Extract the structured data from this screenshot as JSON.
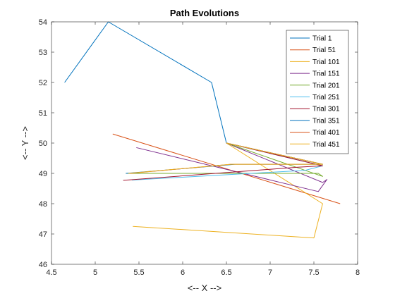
{
  "chart_data": {
    "type": "line",
    "title": "Path Evolutions",
    "xlabel": "<-- X -->",
    "ylabel": "<-- Y -->",
    "xlim": [
      4.5,
      8
    ],
    "ylim": [
      46,
      54
    ],
    "xticks": [
      4.5,
      5,
      5.5,
      6,
      6.5,
      7,
      7.5,
      8
    ],
    "yticks": [
      46,
      47,
      48,
      49,
      50,
      51,
      52,
      53,
      54
    ],
    "xtick_labels": [
      "4.5",
      "5",
      "5.5",
      "6",
      "6.5",
      "7",
      "7.5",
      "8"
    ],
    "ytick_labels": [
      "46",
      "47",
      "48",
      "49",
      "50",
      "51",
      "52",
      "53",
      "54"
    ],
    "grid": false,
    "legend_position": "top-right",
    "series": [
      {
        "name": "Trial 1",
        "color": "#0072BD",
        "x": [
          4.65,
          5.15,
          6.33,
          6.5,
          7.6
        ],
        "y": [
          52.0,
          54.0,
          52.0,
          50.0,
          49.3
        ]
      },
      {
        "name": "Trial 51",
        "color": "#D95319",
        "x": [
          5.2,
          7.8
        ],
        "y": [
          50.3,
          48.0
        ]
      },
      {
        "name": "Trial 101",
        "color": "#EDB120",
        "x": [
          5.43,
          7.5,
          7.6,
          6.5,
          7.6
        ],
        "y": [
          47.25,
          46.87,
          48.0,
          50.0,
          49.3
        ]
      },
      {
        "name": "Trial 151",
        "color": "#7E2F8E",
        "x": [
          5.47,
          7.55,
          7.65,
          7.6,
          6.5,
          7.6
        ],
        "y": [
          49.85,
          48.4,
          48.8,
          48.7,
          50.0,
          49.3
        ]
      },
      {
        "name": "Trial 201",
        "color": "#77AC30",
        "x": [
          5.35,
          7.55,
          7.6,
          6.5,
          7.6
        ],
        "y": [
          49.0,
          49.0,
          48.9,
          50.0,
          49.3
        ]
      },
      {
        "name": "Trial 251",
        "color": "#4DBEEE",
        "x": [
          5.42,
          7.4,
          7.6,
          6.5,
          7.6
        ],
        "y": [
          48.78,
          49.1,
          49.25,
          50.0,
          49.3
        ]
      },
      {
        "name": "Trial 301",
        "color": "#A2142F",
        "x": [
          5.32,
          7.3,
          7.6,
          6.5,
          7.6
        ],
        "y": [
          48.77,
          49.2,
          49.25,
          50.0,
          49.3
        ]
      },
      {
        "name": "Trial 351",
        "color": "#0072BD",
        "x": [
          5.35,
          6.6,
          7.6,
          6.5,
          7.6
        ],
        "y": [
          49.0,
          49.3,
          49.3,
          50.0,
          49.3
        ]
      },
      {
        "name": "Trial 401",
        "color": "#D95319",
        "x": [
          5.4,
          6.55,
          7.6,
          6.5,
          7.6
        ],
        "y": [
          49.0,
          49.3,
          49.3,
          50.0,
          49.3
        ]
      },
      {
        "name": "Trial 451",
        "color": "#EDB120",
        "x": [
          5.38,
          6.55,
          7.6,
          6.5,
          7.6
        ],
        "y": [
          49.0,
          49.3,
          49.3,
          50.0,
          49.3
        ]
      }
    ]
  }
}
